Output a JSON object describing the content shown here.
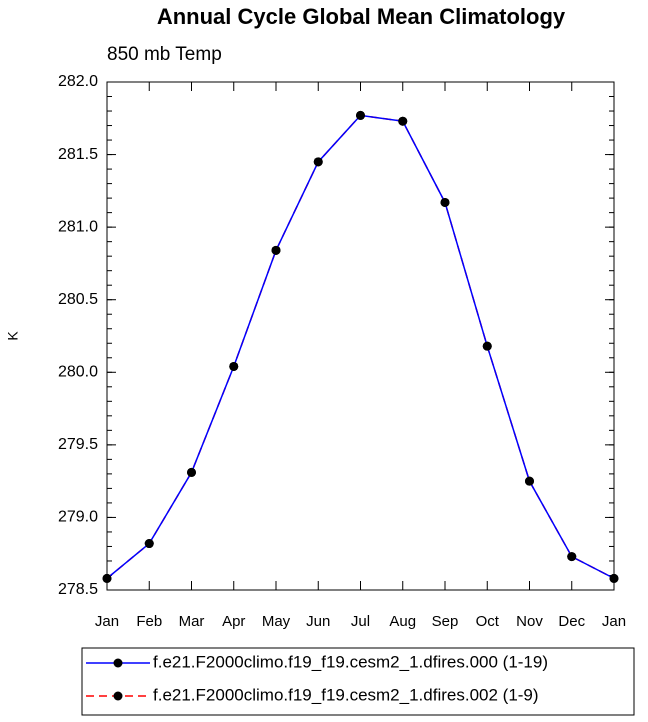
{
  "chart_data": {
    "type": "line",
    "title": "Annual Cycle Global Mean Climatology",
    "subtitle": "850 mb Temp",
    "y_label": "K",
    "categories": [
      "Jan",
      "Feb",
      "Mar",
      "Apr",
      "May",
      "Jun",
      "Jul",
      "Aug",
      "Sep",
      "Oct",
      "Nov",
      "Dec",
      "Jan"
    ],
    "series": [
      {
        "name": "f.e21.F2000climo.f19_f19.cesm2_1.dfires.000 (1-19)",
        "color": "#0000ff",
        "dashed": false,
        "values": [
          278.58,
          278.82,
          279.31,
          280.04,
          280.84,
          281.45,
          281.77,
          281.73,
          281.17,
          280.18,
          279.25,
          278.73,
          278.58
        ]
      },
      {
        "name": "f.e21.F2000climo.f19_f19.cesm2_1.dfires.002 (1-9)",
        "color": "#ff0000",
        "dashed": true,
        "values": [
          278.58,
          278.82,
          279.31,
          280.04,
          280.84,
          281.45,
          281.77,
          281.73,
          281.17,
          280.18,
          279.25,
          278.73,
          278.58
        ]
      }
    ],
    "ylim": [
      278.5,
      282.0
    ],
    "yticks": [
      {
        "value": 278.5,
        "label": "278.5"
      },
      {
        "value": 279.0,
        "label": "279.0"
      },
      {
        "value": 279.5,
        "label": "279.5"
      },
      {
        "value": 280.0,
        "label": "280.0"
      },
      {
        "value": 280.5,
        "label": "280.5"
      },
      {
        "value": 281.0,
        "label": "281.0"
      },
      {
        "value": 281.5,
        "label": "281.5"
      },
      {
        "value": 282.0,
        "label": "282.0"
      }
    ],
    "grid": false
  }
}
